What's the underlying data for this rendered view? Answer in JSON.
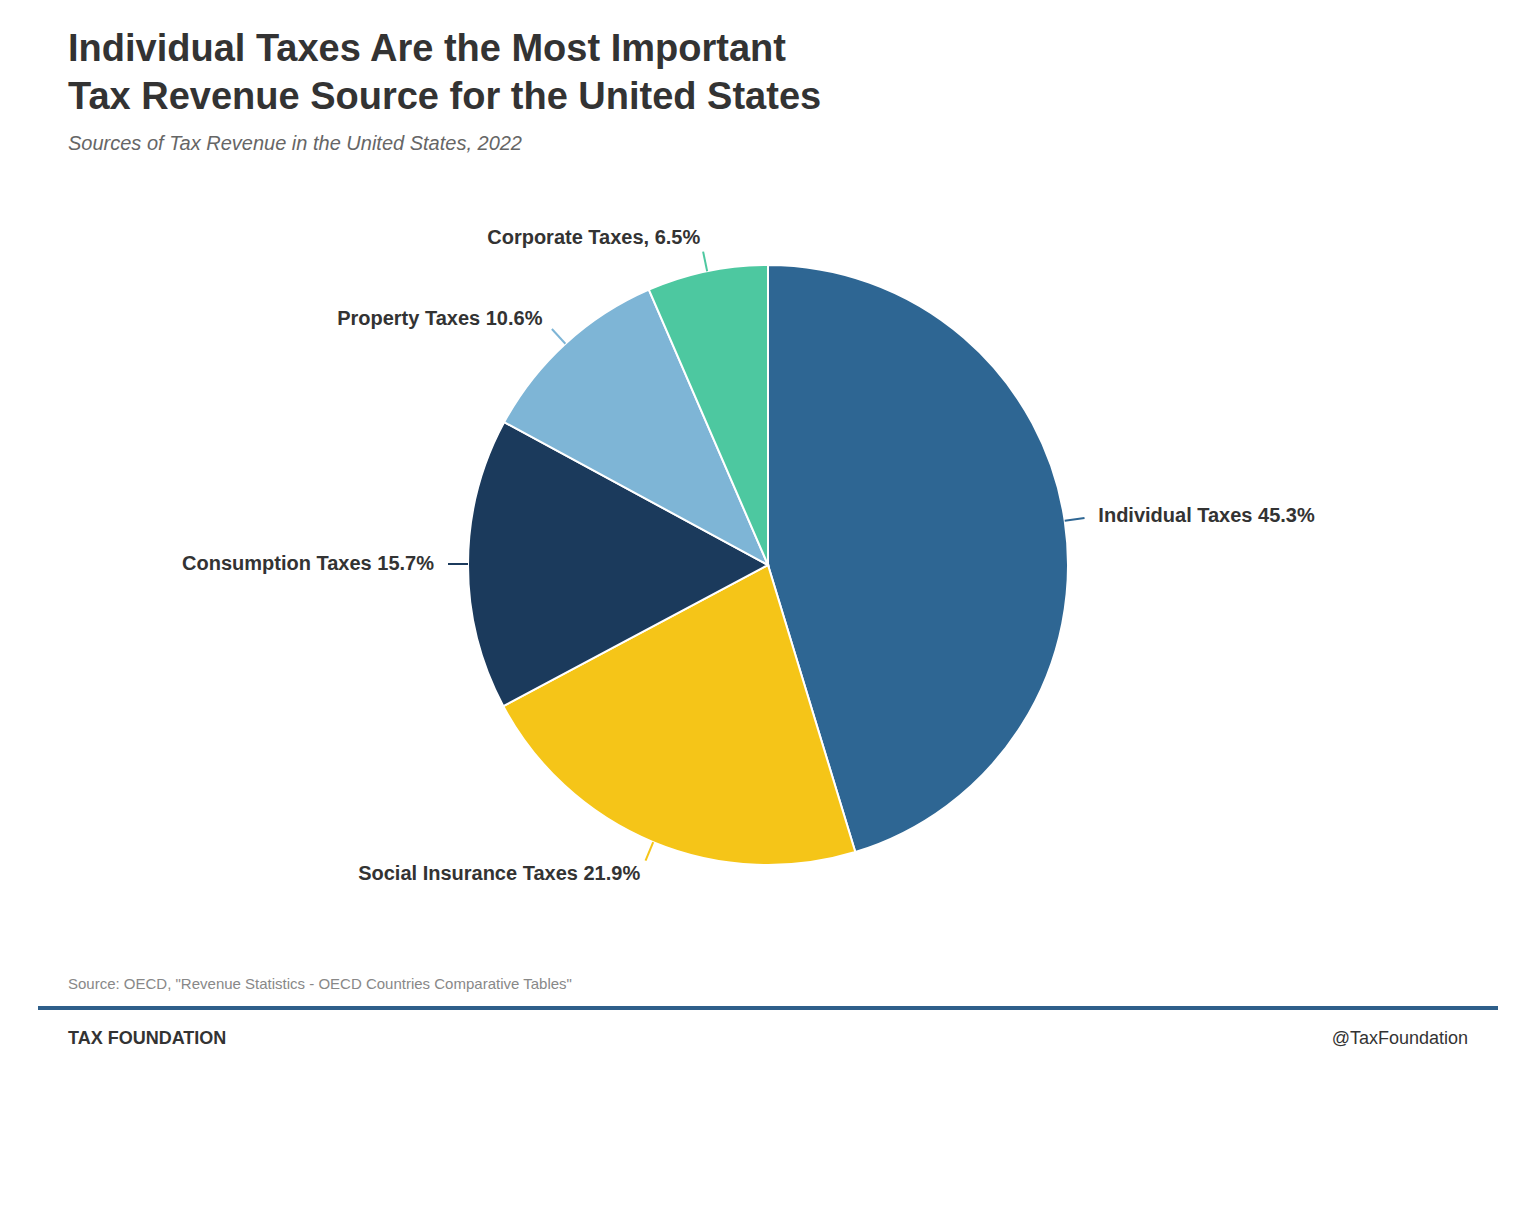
{
  "chart_data": {
    "type": "pie",
    "title": "Individual Taxes Are the Most Important\nTax Revenue Source for the United States",
    "subtitle": "Sources of Tax Revenue in the United States, 2022",
    "categories": [
      "Individual Taxes",
      "Social Insurance Taxes",
      "Consumption Taxes",
      "Property Taxes",
      "Corporate Taxes"
    ],
    "values": [
      45.3,
      21.9,
      15.7,
      10.6,
      6.5
    ],
    "value_labels": [
      "Individual Taxes 45.3%",
      "Social Insurance Taxes 21.9%",
      "Consumption Taxes 15.7%",
      "Property Taxes 10.6%",
      "Corporate Taxes, 6.5%"
    ],
    "colors": [
      "#2E6693",
      "#F5C518",
      "#1B3A5C",
      "#7EB5D6",
      "#4DC8A0"
    ],
    "annotations": [
      "Source: OECD, \"Revenue Statistics - OECD Countries Comparative Tables\"",
      "TAX FOUNDATION",
      "@TaxFoundation"
    ]
  }
}
